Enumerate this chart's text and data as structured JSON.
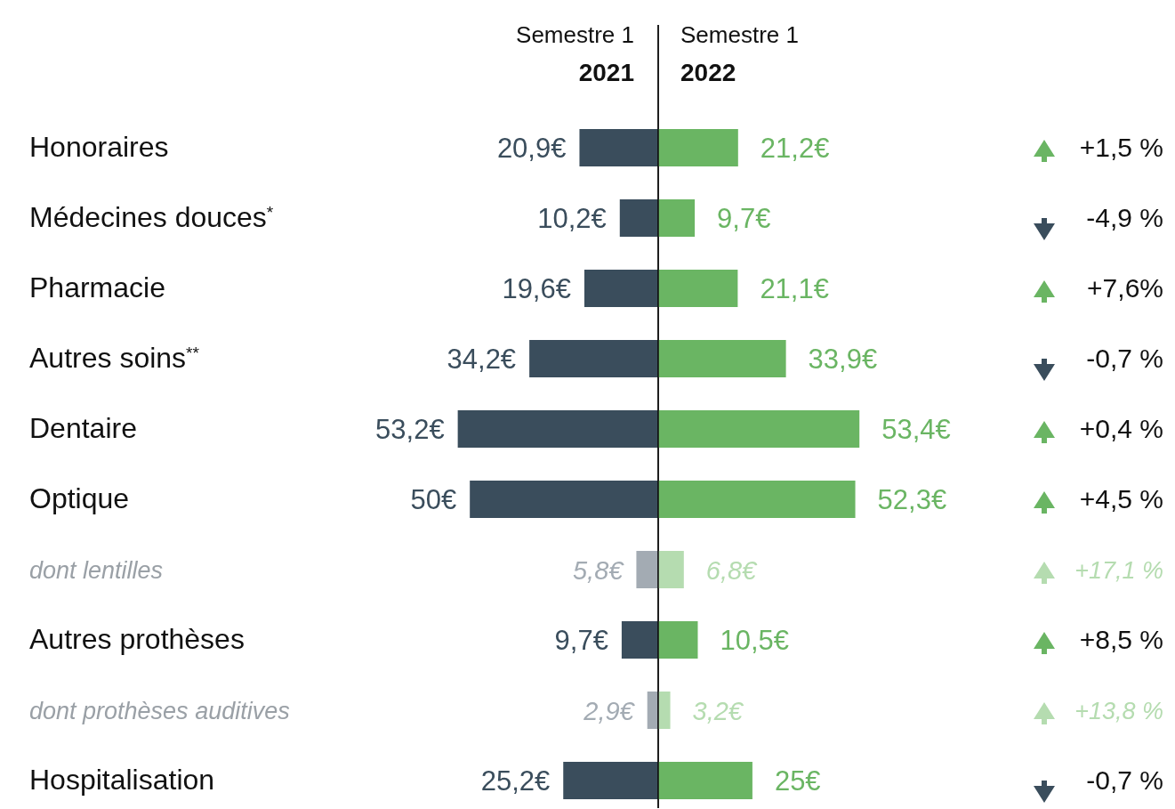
{
  "chart_data": [
    {
      "type": "bar",
      "orientation": "horizontal",
      "categories": [
        "Honoraires",
        "Médecines douces$^{*}$",
        "Pharmacie",
        "Autres soins$^{**}$",
        "Dentaire",
        "Optique",
        "dont lentilles",
        "Autres prothèses",
        "dont prothèses auditives",
        "Hospitalisation"
      ],
      "series": [
        {
          "name": "Semestre 1 2021",
          "color": "#3a4d5c",
          "colors": [
            "#3a4d5c",
            "#3a4d5c",
            "#3a4d5c",
            "#3a4d5c",
            "#3a4d5c",
            "#3a4d5c",
            "#a3abb3",
            "#3a4d5c",
            "#a3abb3",
            "#3a4d5c"
          ],
          "values": [
            20.9,
            10.2,
            19.6,
            34.2,
            53.2,
            50,
            5.8,
            9.7,
            2.9,
            25.2
          ],
          "value_labels": [
            "20,9€",
            "10,2€",
            "19,6€",
            "34,2€",
            "53,2€",
            "50€",
            "5,8€",
            "9,7€",
            "2,9€",
            "25,2€"
          ]
        }
      ]
    },
    {
      "type": "bar",
      "orientation": "horizontal",
      "categories": [
        null,
        null,
        null,
        null,
        null,
        null,
        null,
        null,
        null,
        null
      ],
      "series": [
        {
          "name": "Semestre 1 2022",
          "color": "#6ab563",
          "colors": [
            "#6ab563",
            "#6ab563",
            "#6ab563",
            "#6ab563",
            "#6ab563",
            "#6ab563",
            "#b5dcb0",
            "#6ab563",
            "#b5dcb0",
            "#6ab563"
          ],
          "values": [
            21.2,
            9.7,
            21.1,
            33.9,
            53.4,
            52.3,
            6.8,
            10.5,
            3.2,
            25
          ],
          "value_labels": [
            "21,2€",
            "9,7€",
            "21,1€",
            "33,9€",
            "53,4€",
            "52,3€",
            "6,8€",
            "10,5€",
            "3,2€",
            "25€"
          ]
        }
      ],
      "annotations": [
        "+1,5 %",
        "-4,9 %",
        "+7,6%",
        "-0,7 %",
        "+0,4 %",
        "+4,5 %",
        "+17,1 %",
        "+8,5 %",
        "+13,8 %",
        "-0,7 %"
      ]
    }
  ]
}
